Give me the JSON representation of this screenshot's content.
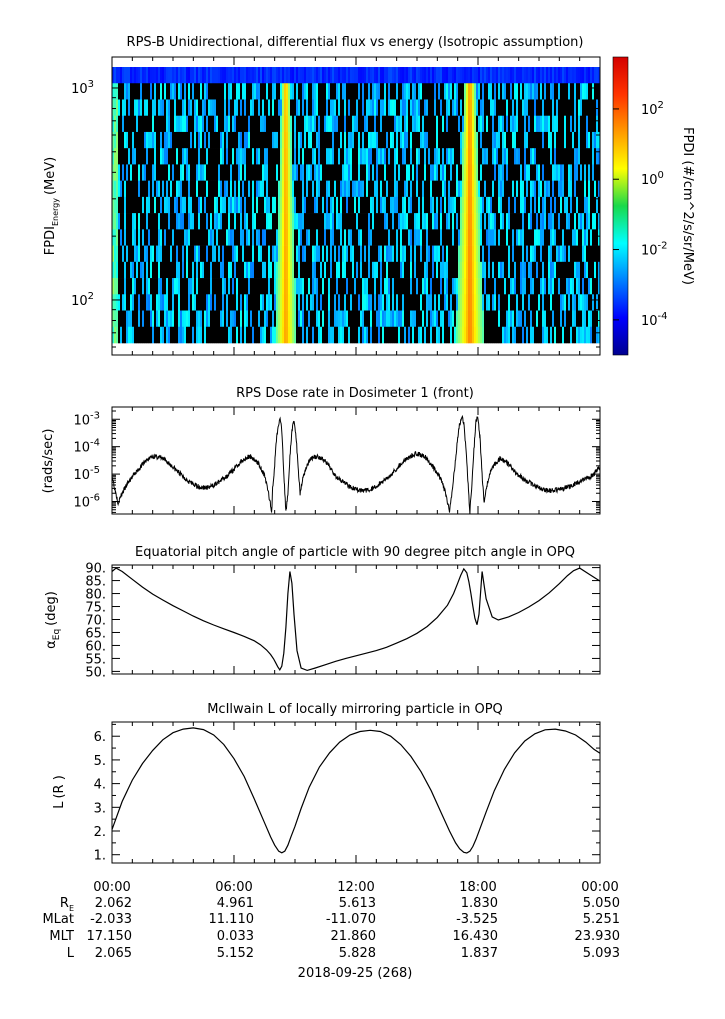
{
  "chart_data": [
    {
      "type": "heatmap",
      "title": "RPS-B  Unidirectional, differential flux vs energy (Isotropic assumption)",
      "ylabel": "FPDI",
      "ylabel_sub": "Energy",
      "ylabel_unit": "(MeV)",
      "yscale": "log",
      "ylim": [
        55,
        1400
      ],
      "yticks": [
        {
          "value": 100,
          "label": "10",
          "exp": "2"
        },
        {
          "value": 1000,
          "label": "10",
          "exp": "3"
        }
      ],
      "colorbar": {
        "label": "FPDI (#/cm^2/s/sr/MeV)",
        "scale": "log",
        "range": [
          1e-05,
          3000
        ],
        "ticks": [
          {
            "value": 0.0001,
            "label": "10",
            "exp": "-4"
          },
          {
            "value": 0.01,
            "label": "10",
            "exp": "-2"
          },
          {
            "value": 1,
            "label": "10",
            "exp": "0"
          },
          {
            "value": 100,
            "label": "10",
            "exp": "2"
          }
        ],
        "colormap": "jet"
      },
      "features": [
        {
          "name": "belt crossing",
          "hours": [
            8.0,
            9.1
          ],
          "peak_log_flux": 1.2
        },
        {
          "name": "belt crossing",
          "hours": [
            16.9,
            18.3
          ],
          "peak_log_flux": 1.4
        }
      ],
      "background_log_flux": -2.3,
      "top_band_log_flux": -3.6
    },
    {
      "type": "line",
      "title": "RPS  Dose rate in Dosimeter 1 (front)",
      "ylabel": "(rads/sec)",
      "yscale": "log",
      "ylim": [
        3.5e-07,
        0.0028
      ],
      "yticks": [
        {
          "value": 1e-06,
          "label": "10",
          "exp": "-6"
        },
        {
          "value": 1e-05,
          "label": "10",
          "exp": "-5"
        },
        {
          "value": 0.0001,
          "label": "10",
          "exp": "-4"
        },
        {
          "value": 0.001,
          "label": "10",
          "exp": "-3"
        }
      ],
      "x": [
        0,
        0.1,
        0.3,
        0.5,
        0.8,
        1.2,
        1.6,
        2.0,
        2.4,
        2.8,
        3.2,
        3.6,
        4.0,
        4.4,
        4.8,
        5.2,
        5.6,
        6.0,
        6.4,
        6.8,
        7.2,
        7.5,
        7.7,
        7.85,
        7.9,
        8.0,
        8.05,
        8.15,
        8.25,
        8.35,
        8.45,
        8.55,
        8.65,
        8.75,
        8.85,
        8.95,
        9.05,
        9.15,
        9.25,
        9.4,
        9.6,
        9.8,
        10.1,
        10.4,
        10.7,
        11.0,
        11.4,
        11.8,
        12.2,
        12.6,
        13.0,
        13.4,
        13.8,
        14.2,
        14.6,
        15.0,
        15.4,
        15.8,
        16.2,
        16.4,
        16.6,
        16.75,
        16.9,
        17.05,
        17.2,
        17.3,
        17.4,
        17.5,
        17.6,
        17.7,
        17.8,
        17.9,
        18.0,
        18.1,
        18.2,
        18.3,
        18.45,
        18.6,
        18.8,
        19.1,
        19.4,
        19.7,
        20.0,
        20.4,
        20.8,
        21.2,
        21.6,
        22.0,
        22.4,
        22.8,
        23.2,
        23.6,
        24.0
      ],
      "values": [
        9e-06,
        4e-06,
        9e-07,
        2e-06,
        5e-06,
        1.2e-05,
        2.8e-05,
        4.5e-05,
        4e-05,
        2.5e-05,
        1.3e-05,
        7e-06,
        4.2e-06,
        3.2e-06,
        3.3e-06,
        4.8e-06,
        8e-06,
        1.5e-05,
        3.2e-05,
        4.5e-05,
        2.5e-05,
        9e-06,
        2e-06,
        4e-07,
        3e-06,
        2e-05,
        0.0001,
        0.00045,
        0.0012,
        0.0004,
        1e-05,
        4e-07,
        2e-06,
        4e-05,
        0.0004,
        0.0009,
        0.00025,
        2e-05,
        2e-06,
        8e-06,
        2.2e-05,
        3.8e-05,
        4.5e-05,
        3.4e-05,
        1.8e-05,
        9e-06,
        5e-06,
        3.2e-06,
        2.5e-06,
        2.6e-06,
        3.5e-06,
        6e-06,
        1.1e-05,
        2.3e-05,
        4.2e-05,
        5.8e-05,
        4.2e-05,
        1.8e-05,
        6e-06,
        2e-06,
        4e-07,
        3e-06,
        4e-05,
        0.00045,
        0.0012,
        0.0008,
        0.0001,
        6e-06,
        4e-07,
        4e-06,
        8e-05,
        0.0009,
        0.0012,
        0.0002,
        1e-05,
        1e-06,
        4e-06,
        1.2e-05,
        2.2e-05,
        3.8e-05,
        2.8e-05,
        1.5e-05,
        9e-06,
        5.5e-06,
        3.7e-06,
        2.7e-06,
        2.5e-06,
        2.7e-06,
        3.3e-06,
        4.5e-06,
        6e-06,
        9e-06,
        1.7e-05
      ]
    },
    {
      "type": "line",
      "title": "Equatorial pitch angle of particle with 90 degree pitch angle in OPQ",
      "ylabel": "α",
      "ylabel_sub": "Eq",
      "ylabel_unit": "(deg)",
      "ylim": [
        49,
        91
      ],
      "yticks": [
        {
          "value": 50,
          "label": "50."
        },
        {
          "value": 55,
          "label": "55."
        },
        {
          "value": 60,
          "label": "60."
        },
        {
          "value": 65,
          "label": "65."
        },
        {
          "value": 70,
          "label": "70."
        },
        {
          "value": 75,
          "label": "75."
        },
        {
          "value": 80,
          "label": "80."
        },
        {
          "value": 85,
          "label": "85."
        },
        {
          "value": 90,
          "label": "90."
        }
      ],
      "x": [
        0,
        0.2,
        0.5,
        1.0,
        1.5,
        2.0,
        2.5,
        3.0,
        3.5,
        4.0,
        4.5,
        5.0,
        5.5,
        6.0,
        6.5,
        7.0,
        7.3,
        7.6,
        7.8,
        7.95,
        8.05,
        8.15,
        8.25,
        8.35,
        8.45,
        8.55,
        8.65,
        8.75,
        8.85,
        8.95,
        9.1,
        9.3,
        9.6,
        10.0,
        10.5,
        11.0,
        11.5,
        12.0,
        12.5,
        13.0,
        13.5,
        14.0,
        14.5,
        15.0,
        15.5,
        16.0,
        16.5,
        16.8,
        17.0,
        17.15,
        17.3,
        17.45,
        17.55,
        17.65,
        17.75,
        17.85,
        17.95,
        18.05,
        18.2,
        18.4,
        18.7,
        19.0,
        19.5,
        20.0,
        20.5,
        21.0,
        21.5,
        22.0,
        22.4,
        22.7,
        23.0,
        23.5,
        24.0
      ],
      "values": [
        88.5,
        89.8,
        88.5,
        85.5,
        82.5,
        79.8,
        77.5,
        75.3,
        73.3,
        71.3,
        69.5,
        67.9,
        66.4,
        65.0,
        63.5,
        61.8,
        60.3,
        58.3,
        56.5,
        54.8,
        53.3,
        51.8,
        50.6,
        52.0,
        57.0,
        67.0,
        80.0,
        88.5,
        84.0,
        72.0,
        58.0,
        51.3,
        50.4,
        51.3,
        52.6,
        53.9,
        55.0,
        56.0,
        57.0,
        58.0,
        59.3,
        60.9,
        62.6,
        64.7,
        67.3,
        70.8,
        75.5,
        80.0,
        84.0,
        87.0,
        89.5,
        88.0,
        84.5,
        80.0,
        75.0,
        70.5,
        68.0,
        72.0,
        88.5,
        78.0,
        71.0,
        69.8,
        71.0,
        72.7,
        74.8,
        77.3,
        80.3,
        83.8,
        86.9,
        88.8,
        89.8,
        87.3,
        84.8
      ]
    },
    {
      "type": "line",
      "title": "McIlwain L of locally mirroring particle in OPQ",
      "ylabel": "L",
      "ylabel_sub": "E",
      "ylabel_unit": "(R )",
      "ylim": [
        0.65,
        6.6
      ],
      "yticks": [
        {
          "value": 1,
          "label": "1."
        },
        {
          "value": 2,
          "label": "2."
        },
        {
          "value": 3,
          "label": "3."
        },
        {
          "value": 4,
          "label": "4."
        },
        {
          "value": 5,
          "label": "5."
        },
        {
          "value": 6,
          "label": "6."
        }
      ],
      "x": [
        0,
        0.5,
        1.0,
        1.5,
        2.0,
        2.5,
        3.0,
        3.5,
        4.0,
        4.5,
        5.0,
        5.5,
        6.0,
        6.5,
        7.0,
        7.5,
        7.8,
        8.0,
        8.2,
        8.35,
        8.5,
        8.65,
        8.8,
        9.0,
        9.3,
        9.7,
        10.2,
        10.7,
        11.2,
        11.7,
        12.2,
        12.7,
        13.2,
        13.7,
        14.2,
        14.7,
        15.2,
        15.7,
        16.2,
        16.6,
        16.9,
        17.1,
        17.3,
        17.45,
        17.6,
        17.75,
        17.9,
        18.1,
        18.4,
        18.8,
        19.3,
        19.8,
        20.3,
        20.8,
        21.3,
        21.8,
        22.3,
        22.8,
        23.3,
        23.7,
        24.0
      ],
      "values": [
        2.06,
        3.25,
        4.15,
        4.85,
        5.4,
        5.85,
        6.15,
        6.3,
        6.35,
        6.28,
        6.05,
        5.65,
        5.05,
        4.3,
        3.35,
        2.35,
        1.75,
        1.4,
        1.15,
        1.08,
        1.15,
        1.4,
        1.75,
        2.2,
        2.95,
        3.85,
        4.7,
        5.3,
        5.75,
        6.05,
        6.2,
        6.25,
        6.2,
        6.0,
        5.65,
        5.15,
        4.5,
        3.7,
        2.75,
        2.0,
        1.5,
        1.25,
        1.1,
        1.07,
        1.15,
        1.35,
        1.65,
        2.1,
        2.8,
        3.7,
        4.6,
        5.3,
        5.8,
        6.1,
        6.27,
        6.3,
        6.22,
        6.05,
        5.75,
        5.45,
        5.28
      ]
    }
  ],
  "x_axis": {
    "ticks": [
      {
        "value": 0,
        "label": "00:00"
      },
      {
        "value": 6,
        "label": "06:00"
      },
      {
        "value": 12,
        "label": "12:00"
      },
      {
        "value": 18,
        "label": "18:00"
      },
      {
        "value": 24,
        "label": "00:00"
      }
    ],
    "minor_step_hours": 1,
    "date_label": "2018-09-25 (268)"
  },
  "ephemeris": [
    {
      "label": "R",
      "sub": "E",
      "values": [
        "2.062",
        "4.961",
        "5.613",
        "1.830",
        "5.050"
      ]
    },
    {
      "label": "MLat",
      "sub": "",
      "values": [
        "-2.033",
        "11.110",
        "-11.070",
        "-3.525",
        "5.251"
      ]
    },
    {
      "label": "MLT",
      "sub": "",
      "values": [
        "17.150",
        "0.033",
        "21.860",
        "16.430",
        "23.930"
      ]
    },
    {
      "label": "L",
      "sub": "",
      "values": [
        "2.065",
        "5.152",
        "5.828",
        "1.837",
        "5.093"
      ]
    }
  ]
}
